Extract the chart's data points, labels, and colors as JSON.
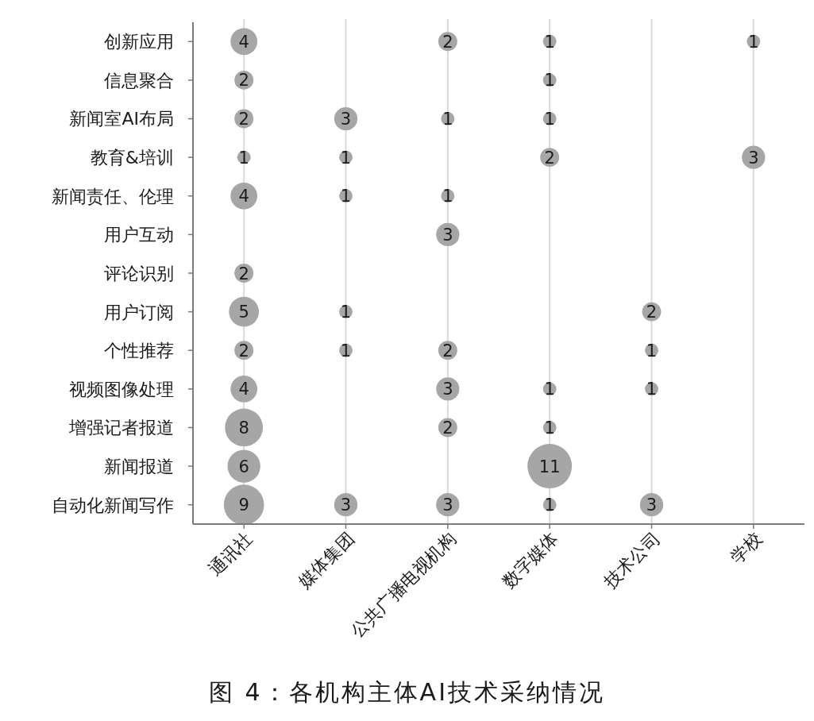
{
  "chart_data": {
    "type": "heatmap",
    "categories": [
      "通讯社",
      "媒体集团",
      "公共广播电视机构",
      "数字媒体",
      "技术公司",
      "学校"
    ],
    "y_categories": [
      "创新应用",
      "信息聚合",
      "新闻室AI布局",
      "教育&培训",
      "新闻责任、伦理",
      "用户互动",
      "评论识别",
      "用户订阅",
      "个性推荐",
      "视频图像处理",
      "增强记者报道",
      "新闻报道",
      "自动化新闻写作"
    ],
    "cells": [
      [
        4,
        null,
        2,
        1,
        null,
        1
      ],
      [
        2,
        null,
        null,
        1,
        null,
        null
      ],
      [
        2,
        3,
        1,
        1,
        null,
        null
      ],
      [
        1,
        1,
        null,
        2,
        null,
        3
      ],
      [
        4,
        1,
        1,
        null,
        null,
        null
      ],
      [
        null,
        null,
        3,
        null,
        null,
        null
      ],
      [
        2,
        null,
        null,
        null,
        null,
        null
      ],
      [
        5,
        1,
        null,
        null,
        2,
        null
      ],
      [
        2,
        1,
        2,
        null,
        1,
        null
      ],
      [
        4,
        null,
        3,
        1,
        1,
        null
      ],
      [
        8,
        null,
        2,
        1,
        null,
        null
      ],
      [
        6,
        null,
        null,
        11,
        null,
        null
      ],
      [
        9,
        3,
        3,
        1,
        3,
        null
      ]
    ],
    "color": "#a6a6a6",
    "data_labels": true,
    "grid": "x",
    "annotations": [
      "图 4：各机构主体AI技术采纳情况"
    ]
  }
}
